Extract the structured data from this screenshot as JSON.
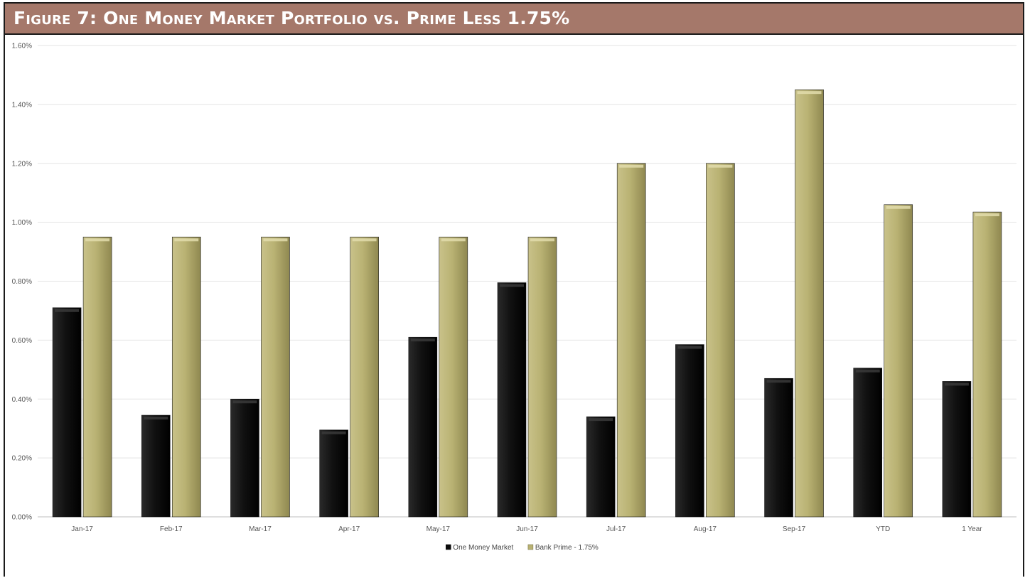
{
  "title": "Figure 7: One Money Market Portfolio vs. Prime Less 1.75%",
  "chart_data": {
    "type": "bar",
    "title": "Figure 7: One Money Market Portfolio vs. Prime Less 1.75%",
    "categories": [
      "Jan-17",
      "Feb-17",
      "Mar-17",
      "Apr-17",
      "May-17",
      "Jun-17",
      "Jul-17",
      "Aug-17",
      "Sep-17",
      "YTD",
      "1 Year"
    ],
    "series": [
      {
        "name": "One Money Market",
        "color": "#0c0c0c",
        "values": [
          0.71,
          0.345,
          0.4,
          0.295,
          0.61,
          0.795,
          0.34,
          0.585,
          0.47,
          0.505,
          0.46
        ]
      },
      {
        "name": "Bank Prime - 1.75%",
        "color": "#b9b273",
        "values": [
          0.95,
          0.95,
          0.95,
          0.95,
          0.95,
          0.95,
          1.2,
          1.2,
          1.45,
          1.06,
          1.035
        ]
      }
    ],
    "ylim": [
      0,
      1.6
    ],
    "yticks": [
      0,
      0.2,
      0.4,
      0.6,
      0.8,
      1.0,
      1.2,
      1.4,
      1.6
    ],
    "ytick_labels": [
      "0.00%",
      "0.20%",
      "0.40%",
      "0.60%",
      "0.80%",
      "1.00%",
      "1.20%",
      "1.40%",
      "1.60%"
    ],
    "grid": true,
    "legend_position": "bottom"
  }
}
